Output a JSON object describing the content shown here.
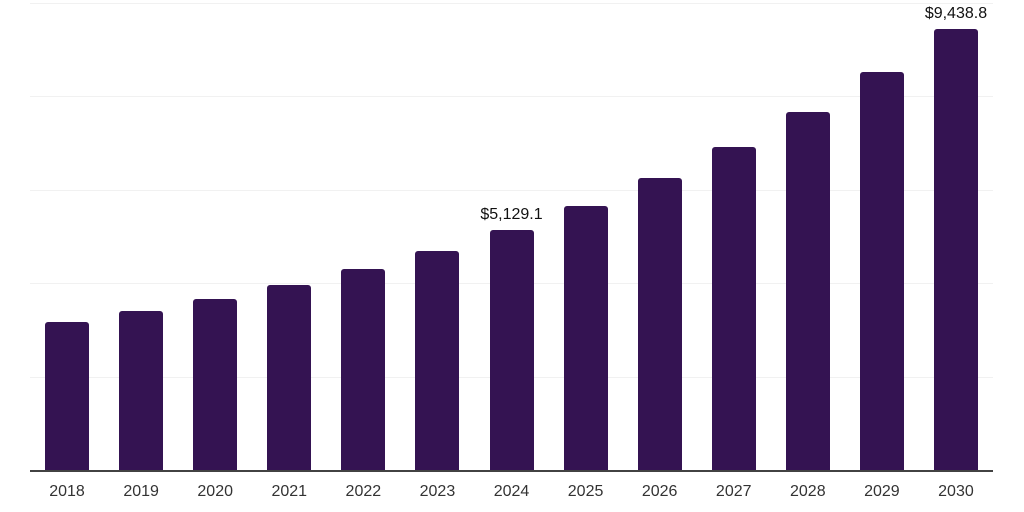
{
  "chart_data": {
    "type": "bar",
    "title": "",
    "xlabel": "",
    "ylabel": "",
    "categories": [
      "2018",
      "2019",
      "2020",
      "2021",
      "2022",
      "2023",
      "2024",
      "2025",
      "2026",
      "2027",
      "2028",
      "2029",
      "2030"
    ],
    "values": [
      3160,
      3410,
      3665,
      3960,
      4290,
      4695,
      5129.1,
      5640,
      6240,
      6900,
      7655,
      8515,
      9438.8
    ],
    "data_labels": {
      "2024": "$5,129.1",
      "2030": "$9,438.8"
    },
    "ylim": [
      0,
      10000
    ],
    "grid_step": 2000,
    "grid": "horizontal",
    "y_axis_tick_labels": "none",
    "legend": "none",
    "colors": {
      "bar": "#341352",
      "gridline": "#f1f1f1",
      "axis": "#424242",
      "tick_text": "#333333",
      "label_text": "#111111",
      "background": "#ffffff"
    }
  }
}
